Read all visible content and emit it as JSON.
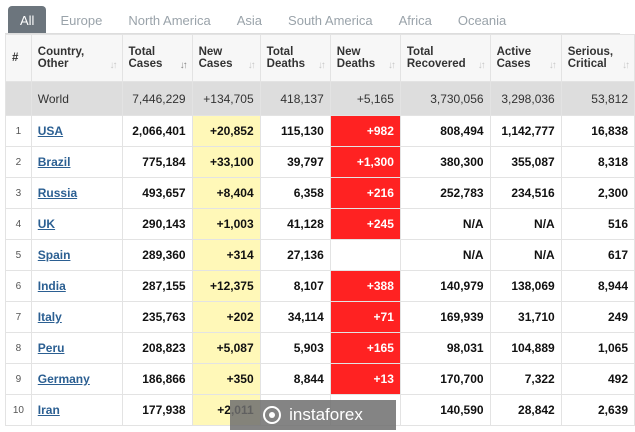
{
  "tabs": [
    "All",
    "Europe",
    "North America",
    "Asia",
    "South America",
    "Africa",
    "Oceania"
  ],
  "columns": [
    "#",
    "Country, Other",
    "Total Cases",
    "New Cases",
    "Total Deaths",
    "New Deaths",
    "Total Recovered",
    "Active Cases",
    "Serious, Critical"
  ],
  "world": {
    "name": "World",
    "total_cases": "7,446,229",
    "new_cases": "+134,705",
    "total_deaths": "418,137",
    "new_deaths": "+5,165",
    "total_recovered": "3,730,056",
    "active_cases": "3,298,036",
    "serious": "53,812"
  },
  "rows": [
    {
      "num": "1",
      "country": "USA",
      "total_cases": "2,066,401",
      "new_cases": "+20,852",
      "total_deaths": "115,130",
      "new_deaths": "+982",
      "total_recovered": "808,494",
      "active_cases": "1,142,777",
      "serious": "16,838"
    },
    {
      "num": "2",
      "country": "Brazil",
      "total_cases": "775,184",
      "new_cases": "+33,100",
      "total_deaths": "39,797",
      "new_deaths": "+1,300",
      "total_recovered": "380,300",
      "active_cases": "355,087",
      "serious": "8,318"
    },
    {
      "num": "3",
      "country": "Russia",
      "total_cases": "493,657",
      "new_cases": "+8,404",
      "total_deaths": "6,358",
      "new_deaths": "+216",
      "total_recovered": "252,783",
      "active_cases": "234,516",
      "serious": "2,300"
    },
    {
      "num": "4",
      "country": "UK",
      "total_cases": "290,143",
      "new_cases": "+1,003",
      "total_deaths": "41,128",
      "new_deaths": "+245",
      "total_recovered": "N/A",
      "active_cases": "N/A",
      "serious": "516"
    },
    {
      "num": "5",
      "country": "Spain",
      "total_cases": "289,360",
      "new_cases": "+314",
      "total_deaths": "27,136",
      "new_deaths": "",
      "total_recovered": "N/A",
      "active_cases": "N/A",
      "serious": "617"
    },
    {
      "num": "6",
      "country": "India",
      "total_cases": "287,155",
      "new_cases": "+12,375",
      "total_deaths": "8,107",
      "new_deaths": "+388",
      "total_recovered": "140,979",
      "active_cases": "138,069",
      "serious": "8,944"
    },
    {
      "num": "7",
      "country": "Italy",
      "total_cases": "235,763",
      "new_cases": "+202",
      "total_deaths": "34,114",
      "new_deaths": "+71",
      "total_recovered": "169,939",
      "active_cases": "31,710",
      "serious": "249"
    },
    {
      "num": "8",
      "country": "Peru",
      "total_cases": "208,823",
      "new_cases": "+5,087",
      "total_deaths": "5,903",
      "new_deaths": "+165",
      "total_recovered": "98,031",
      "active_cases": "104,889",
      "serious": "1,065"
    },
    {
      "num": "9",
      "country": "Germany",
      "total_cases": "186,866",
      "new_cases": "+350",
      "total_deaths": "8,844",
      "new_deaths": "+13",
      "total_recovered": "170,700",
      "active_cases": "7,322",
      "serious": "492"
    },
    {
      "num": "10",
      "country": "Iran",
      "total_cases": "177,938",
      "new_cases": "+2,011",
      "total_deaths": "",
      "new_deaths": "",
      "total_recovered": "140,590",
      "active_cases": "28,842",
      "serious": "2,639"
    }
  ],
  "watermark": "instaforex",
  "colors": {
    "new_cases_bg": "#fff8b8",
    "new_deaths_bg": "#ff2222",
    "link": "#2b5f92",
    "active_tab": "#6c757d"
  }
}
